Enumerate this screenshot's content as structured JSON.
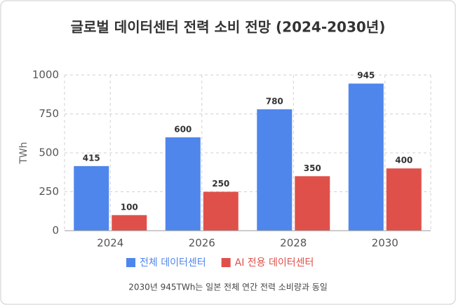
{
  "chart_data": {
    "type": "bar",
    "title": "글로벌 데이터센터 전력 소비 전망 (2024-2030년)",
    "y_label": "TWh",
    "categories": [
      "2024",
      "2026",
      "2028",
      "2030"
    ],
    "series": [
      {
        "name": "전체 데이터센터",
        "color": "#4f86ec",
        "values": [
          415,
          600,
          780,
          945
        ]
      },
      {
        "name": "AI 전용 데이터센터",
        "color": "#e0504a",
        "values": [
          100,
          250,
          350,
          400
        ]
      }
    ],
    "ylim": [
      0,
      1000
    ],
    "yticks": [
      0,
      250,
      500,
      750,
      1000
    ],
    "grid": true,
    "legend": "bottom",
    "footnote": "2030년 945TWh는 일본 전체 연간 전력 소비량과 동일"
  }
}
